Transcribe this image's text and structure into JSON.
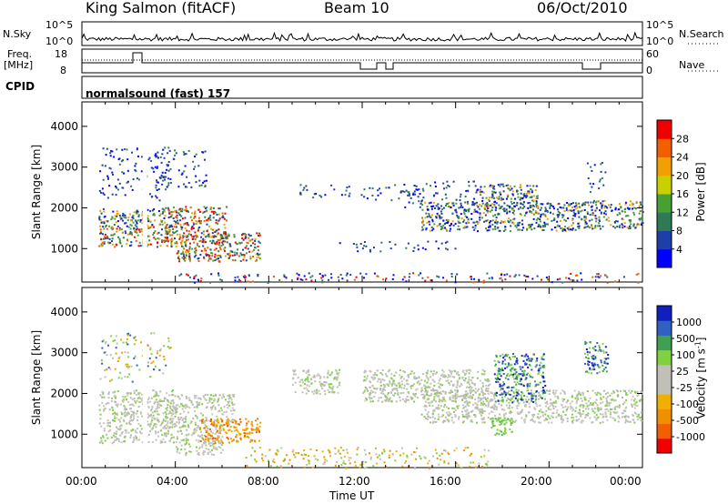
{
  "header": {
    "station": "King Salmon (fitACF)",
    "beam": "Beam 10",
    "date": "06/Oct/2010"
  },
  "top_panels": {
    "nsky_label": "N.Sky",
    "nsky_ticks": [
      "10^5",
      "10^0"
    ],
    "nsearch_label": "N.Search",
    "freq_label_1": "Freq.",
    "freq_label_2": "[MHz]",
    "freq_ticks": [
      "18",
      "8"
    ],
    "nave_label": "Nave",
    "nave_ticks": [
      "60",
      "0"
    ],
    "cpid_label": "CPID",
    "cpid_text": "normalsound (fast) 157"
  },
  "x_axis": {
    "label": "Time UT",
    "ticks": [
      "00:00",
      "04:00",
      "08:00",
      "12:00",
      "16:00",
      "20:00",
      "00:00"
    ]
  },
  "chart_data": [
    {
      "type": "heatmap",
      "title": "",
      "xlabel": "",
      "ylabel": "Slant Range [km]",
      "xlim": [
        0,
        24
      ],
      "ylim": [
        180,
        4600
      ],
      "y_ticks": [
        "4000",
        "3000",
        "2000",
        "1000"
      ],
      "colorbar": {
        "label": "Power [dB]",
        "ticks": [
          "28",
          "24",
          "20",
          "16",
          "12",
          "8",
          "4"
        ],
        "colors": [
          "#0000ff",
          "#1e3ea8",
          "#2e7a56",
          "#48a030",
          "#c8d000",
          "#f0a000",
          "#f06000",
          "#f00000"
        ]
      },
      "regions": [
        {
          "t0": 0.7,
          "t1": 3.9,
          "r0": 1050,
          "r1": 1550,
          "level": "strong"
        },
        {
          "t0": 3.5,
          "t1": 6.2,
          "r0": 1150,
          "r1": 2050,
          "level": "strong"
        },
        {
          "t0": 4.0,
          "t1": 7.6,
          "r0": 700,
          "r1": 1400,
          "level": "strong"
        },
        {
          "t0": 0.7,
          "t1": 3.5,
          "r0": 1550,
          "r1": 2000,
          "level": "medium"
        },
        {
          "t0": 0.7,
          "t1": 3.7,
          "r0": 2200,
          "r1": 3500,
          "level": "weak"
        },
        {
          "t0": 3.0,
          "t1": 5.3,
          "r0": 2500,
          "r1": 3500,
          "level": "weak"
        },
        {
          "t0": 9.2,
          "t1": 11.5,
          "r0": 2250,
          "r1": 2600,
          "level": "weak"
        },
        {
          "t0": 11.8,
          "t1": 14.8,
          "r0": 2200,
          "r1": 2600,
          "level": "weak"
        },
        {
          "t0": 13.8,
          "t1": 17.0,
          "r0": 2000,
          "r1": 2700,
          "level": "weak"
        },
        {
          "t0": 11.0,
          "t1": 16.0,
          "r0": 950,
          "r1": 1200,
          "level": "weak"
        },
        {
          "t0": 14.5,
          "t1": 21.5,
          "r0": 1450,
          "r1": 2150,
          "level": "medium"
        },
        {
          "t0": 17.0,
          "t1": 19.5,
          "r0": 2000,
          "r1": 2600,
          "level": "medium"
        },
        {
          "t0": 21.5,
          "t1": 24.0,
          "r0": 1500,
          "r1": 2200,
          "level": "medium"
        },
        {
          "t0": 21.6,
          "t1": 22.4,
          "r0": 2400,
          "r1": 3200,
          "level": "weak"
        },
        {
          "t0": 4.0,
          "t1": 24.0,
          "r0": 180,
          "r1": 420,
          "level": "ground"
        }
      ]
    },
    {
      "type": "heatmap",
      "title": "",
      "xlabel": "Time UT",
      "ylabel": "Slant Range [km]",
      "xlim": [
        0,
        24
      ],
      "ylim": [
        180,
        4600
      ],
      "y_ticks": [
        "4000",
        "3000",
        "2000",
        "1000"
      ],
      "colorbar": {
        "label": "Velocity [m s-1]",
        "ticks": [
          "1000",
          "500",
          "100",
          "25",
          "-25",
          "-100",
          "-500",
          "-1000"
        ],
        "colors": [
          "#f00000",
          "#f06000",
          "#f09000",
          "#f0b000",
          "#c0c0b8",
          "#c0c0b8",
          "#80d040",
          "#40a050",
          "#3060c0",
          "#1020c0"
        ]
      },
      "regions": [
        {
          "t0": 0.7,
          "t1": 3.9,
          "r0": 800,
          "r1": 2100,
          "level": "gray"
        },
        {
          "t0": 3.5,
          "t1": 6.5,
          "r0": 1200,
          "r1": 2000,
          "level": "gray"
        },
        {
          "t0": 4.0,
          "t1": 6.0,
          "r0": 500,
          "r1": 1250,
          "level": "gray"
        },
        {
          "t0": 5.0,
          "t1": 7.6,
          "r0": 800,
          "r1": 1400,
          "level": "orange"
        },
        {
          "t0": 0.7,
          "t1": 3.8,
          "r0": 2300,
          "r1": 3500,
          "level": "sparse"
        },
        {
          "t0": 9.0,
          "t1": 11.0,
          "r0": 2000,
          "r1": 2600,
          "level": "gray"
        },
        {
          "t0": 12.0,
          "t1": 17.5,
          "r0": 1800,
          "r1": 2600,
          "level": "gray"
        },
        {
          "t0": 14.5,
          "t1": 24.0,
          "r0": 1300,
          "r1": 2100,
          "level": "gray"
        },
        {
          "t0": 17.6,
          "t1": 19.8,
          "r0": 1800,
          "r1": 3000,
          "level": "blue"
        },
        {
          "t0": 17.5,
          "t1": 18.4,
          "r0": 1000,
          "r1": 1450,
          "level": "green"
        },
        {
          "t0": 21.5,
          "t1": 22.5,
          "r0": 2500,
          "r1": 3300,
          "level": "blue"
        },
        {
          "t0": 7.0,
          "t1": 17.5,
          "r0": 180,
          "r1": 700,
          "level": "ground"
        }
      ]
    }
  ]
}
